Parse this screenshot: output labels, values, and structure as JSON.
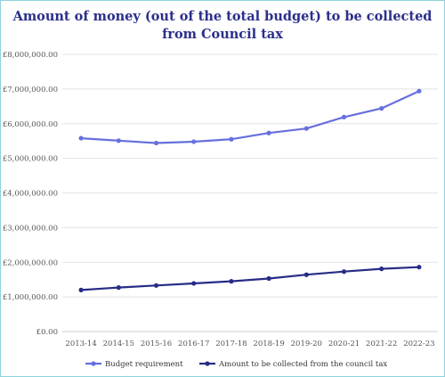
{
  "chart_data": {
    "type": "line",
    "title_lines": [
      "Amount of money (out of the total budget) to be collected",
      "from Council tax"
    ],
    "categories": [
      "2013-14",
      "2014-15",
      "2015-16",
      "2016-17",
      "2017-18",
      "2018-19",
      "2019-20",
      "2020-21",
      "2021-22",
      "2022-23"
    ],
    "y_ticks": [
      0,
      1000000,
      2000000,
      3000000,
      4000000,
      5000000,
      6000000,
      7000000,
      8000000
    ],
    "y_tick_labels": [
      "£0.00",
      "£1,000,000.00",
      "£2,000,000.00",
      "£3,000,000.00",
      "£4,000,000.00",
      "£5,000,000.00",
      "£6,000,000.00",
      "£7,000,000.00",
      "£8,000,000.00"
    ],
    "ylim": [
      0,
      8000000
    ],
    "grid": true,
    "legend_position": "bottom",
    "series": [
      {
        "name": "Budget requirement",
        "color": "#6670dd",
        "values": [
          5580000,
          5510000,
          5440000,
          5480000,
          5550000,
          5730000,
          5860000,
          6190000,
          6440000,
          6940000
        ]
      },
      {
        "name": "Amount to be collected from the council tax",
        "color": "#272c86",
        "values": [
          1200000,
          1270000,
          1330000,
          1390000,
          1450000,
          1530000,
          1640000,
          1730000,
          1810000,
          1860000
        ]
      }
    ]
  }
}
